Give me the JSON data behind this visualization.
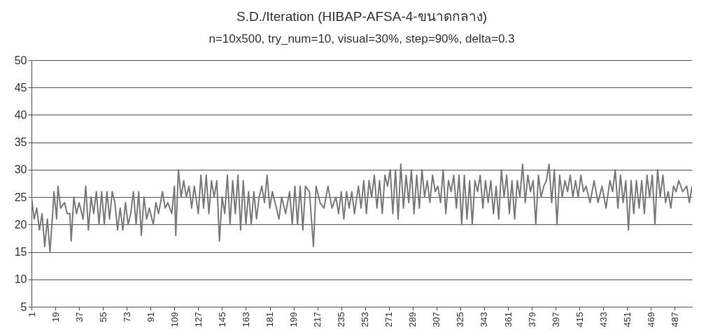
{
  "chart_data": {
    "type": "line",
    "title": "S.D./Iteration (HIBAP-AFSA-4-ขนาดกลาง)",
    "subtitle": "n=10x500, try_num=10, visual=30%, step=90%, delta=0.3",
    "series": [
      {
        "color": "#7a7a7a",
        "x": [
          1,
          3,
          5,
          7,
          9,
          11,
          13,
          15,
          17,
          18,
          20,
          21,
          23,
          26,
          28,
          30,
          31,
          33,
          35,
          37,
          40,
          42,
          44,
          46,
          48,
          50,
          52,
          54,
          56,
          58,
          60,
          62,
          64,
          66,
          68,
          70,
          72,
          74,
          76,
          78,
          80,
          82,
          84,
          86,
          88,
          90,
          93,
          95,
          97,
          100,
          102,
          104,
          107,
          109,
          110,
          112,
          114,
          116,
          118,
          120,
          122,
          124,
          127,
          129,
          131,
          133,
          135,
          137,
          139,
          141,
          143,
          145,
          147,
          149,
          151,
          153,
          155,
          157,
          159,
          161,
          163,
          165,
          167,
          169,
          171,
          173,
          175,
          177,
          179,
          181,
          183,
          185,
          188,
          190,
          193,
          196,
          198,
          200,
          202,
          204,
          206,
          208,
          211,
          214,
          216,
          219,
          222,
          225,
          228,
          231,
          233,
          235,
          237,
          239,
          241,
          243,
          245,
          248,
          250,
          252,
          254,
          256,
          258,
          260,
          262,
          264,
          266,
          268,
          270,
          272,
          274,
          276,
          278,
          280,
          282,
          284,
          286,
          288,
          290,
          292,
          294,
          296,
          298,
          300,
          302,
          304,
          306,
          308,
          310,
          312,
          314,
          316,
          318,
          320,
          322,
          324,
          326,
          328,
          330,
          332,
          334,
          336,
          338,
          340,
          342,
          344,
          346,
          348,
          350,
          352,
          354,
          356,
          358,
          360,
          362,
          364,
          366,
          368,
          370,
          372,
          374,
          376,
          378,
          380,
          382,
          384,
          386,
          388,
          390,
          392,
          394,
          396,
          398,
          400,
          402,
          404,
          406,
          408,
          410,
          412,
          414,
          416,
          418,
          420,
          423,
          426,
          429,
          432,
          435,
          438,
          440,
          442,
          444,
          446,
          448,
          450,
          452,
          454,
          456,
          458,
          460,
          462,
          464,
          466,
          468,
          470,
          472,
          474,
          476,
          478,
          480,
          482,
          484,
          486,
          488,
          490,
          493,
          496,
          498,
          500
        ],
        "values": [
          25,
          21,
          23,
          19,
          22,
          16,
          21,
          15,
          22,
          26,
          21,
          27,
          23,
          24,
          22,
          22,
          17,
          25,
          22,
          24,
          21,
          27,
          19,
          25,
          22,
          26,
          20,
          26,
          20,
          26,
          21,
          26,
          24,
          19,
          23,
          19,
          24,
          20,
          22,
          26,
          20,
          26,
          18,
          25,
          21,
          23,
          20,
          24,
          22,
          26,
          23,
          24,
          22,
          27,
          18,
          30,
          25,
          28,
          25,
          27,
          23,
          27,
          22,
          29,
          23,
          29,
          22,
          28,
          25,
          28,
          17,
          25,
          22,
          29,
          20,
          28,
          22,
          29,
          19,
          28,
          20,
          26,
          20,
          26,
          21,
          25,
          27,
          24,
          29,
          23,
          26,
          24,
          21,
          25,
          22,
          26,
          20,
          27,
          20,
          27,
          19,
          27,
          26,
          16,
          27,
          24,
          23,
          27,
          23,
          25,
          22,
          26,
          21,
          26,
          23,
          26,
          22,
          27,
          23,
          28,
          22,
          28,
          25,
          29,
          23,
          28,
          22,
          29,
          27,
          30,
          22,
          30,
          21,
          31,
          23,
          29,
          24,
          30,
          22,
          29,
          23,
          30,
          25,
          28,
          24,
          29,
          26,
          27,
          24,
          30,
          22,
          28,
          26,
          29,
          23,
          29,
          20,
          29,
          21,
          28,
          20,
          28,
          26,
          29,
          23,
          28,
          24,
          28,
          22,
          27,
          21,
          30,
          25,
          29,
          22,
          28,
          21,
          28,
          25,
          31,
          24,
          29,
          26,
          28,
          20,
          29,
          25,
          27,
          28,
          31,
          24,
          30,
          20,
          29,
          25,
          28,
          26,
          29,
          25,
          28,
          25,
          29,
          26,
          27,
          24,
          28,
          24,
          27,
          23,
          28,
          26,
          30,
          23,
          29,
          24,
          28,
          19,
          28,
          22,
          28,
          23,
          28,
          22,
          29,
          25,
          29,
          20,
          30,
          25,
          29,
          24,
          26,
          23,
          27,
          26,
          28,
          26,
          27,
          24,
          27
        ]
      }
    ],
    "xlim": [
      1,
      500
    ],
    "xticks": [
      1,
      19,
      37,
      55,
      73,
      91,
      109,
      127,
      145,
      163,
      181,
      199,
      217,
      235,
      253,
      271,
      289,
      307,
      325,
      343,
      361,
      379,
      397,
      415,
      433,
      451,
      469,
      487
    ],
    "ylim": [
      5,
      50
    ],
    "yticks": [
      5,
      10,
      15,
      20,
      25,
      30,
      35,
      40,
      45,
      50
    ],
    "grid": "y",
    "line_style": "solid"
  }
}
